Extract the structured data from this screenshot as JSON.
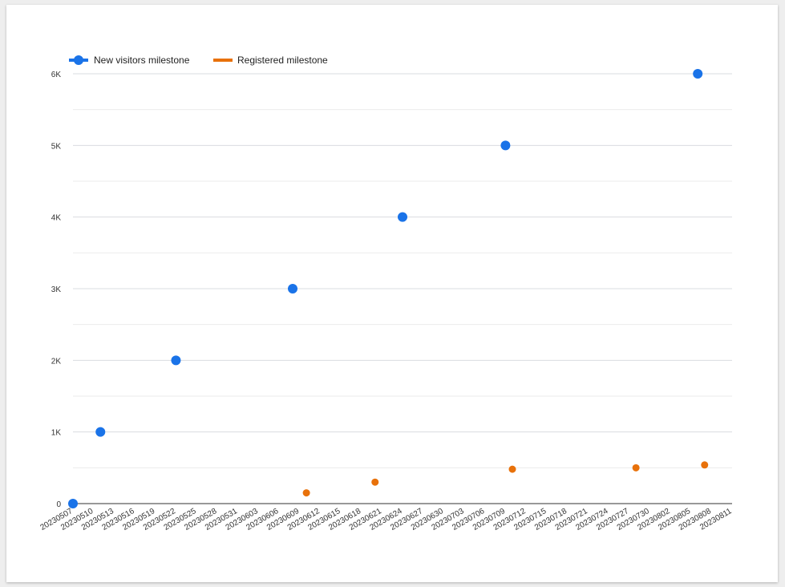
{
  "chart_data": {
    "type": "scatter",
    "title": "",
    "xlabel": "",
    "ylabel": "",
    "x_tick_labels": [
      "20230507",
      "20230510",
      "20230513",
      "20230516",
      "20230519",
      "20230522",
      "20230525",
      "20230528",
      "20230531",
      "20230603",
      "20230606",
      "20230609",
      "20230612",
      "20230615",
      "20230618",
      "20230621",
      "20230624",
      "20230627",
      "20230630",
      "20230703",
      "20230706",
      "20230709",
      "20230712",
      "20230715",
      "20230718",
      "20230721",
      "20230724",
      "20230727",
      "20230730",
      "20230802",
      "20230805",
      "20230808",
      "20230811"
    ],
    "xlim": [
      "20230507",
      "20230811"
    ],
    "ylim": [
      0,
      6000
    ],
    "y_ticks": [
      {
        "value": 0,
        "label": "0"
      },
      {
        "value": 1000,
        "label": "1K"
      },
      {
        "value": 2000,
        "label": "2K"
      },
      {
        "value": 3000,
        "label": "3K"
      },
      {
        "value": 4000,
        "label": "4K"
      },
      {
        "value": 5000,
        "label": "5K"
      },
      {
        "value": 6000,
        "label": "6K"
      }
    ],
    "grid": true,
    "legend": "top-left",
    "series": [
      {
        "name": "New visitors milestone",
        "color": "#1a73e8",
        "points": [
          {
            "x": "20230507",
            "y": 0
          },
          {
            "x": "20230511",
            "y": 1000
          },
          {
            "x": "20230522",
            "y": 2000
          },
          {
            "x": "20230608",
            "y": 3000
          },
          {
            "x": "20230624",
            "y": 4000
          },
          {
            "x": "20230709",
            "y": 5000
          },
          {
            "x": "20230806",
            "y": 6000
          }
        ]
      },
      {
        "name": "Registered milestone",
        "color": "#e8710a",
        "points": [
          {
            "x": "20230610",
            "y": 150
          },
          {
            "x": "20230620",
            "y": 300
          },
          {
            "x": "20230710",
            "y": 480
          },
          {
            "x": "20230728",
            "y": 500
          },
          {
            "x": "20230807",
            "y": 540
          }
        ]
      }
    ]
  }
}
